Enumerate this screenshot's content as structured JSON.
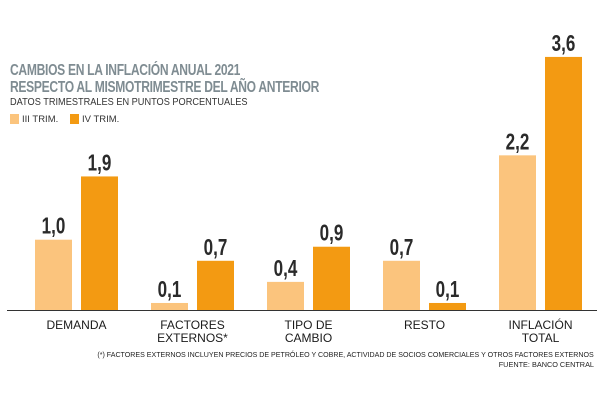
{
  "chart_data": {
    "type": "bar",
    "title": "CAMBIOS EN LA INFLACIÓN ANUAL 2021",
    "subtitle": "RESPECTO AL MISMOTRIMESTRE DEL AÑO ANTERIOR",
    "ylabel": "DATOS TRIMESTRALES EN PUNTOS PORCENTUALES",
    "categories": [
      [
        "DEMANDA"
      ],
      [
        "FACTORES",
        "EXTERNOS*"
      ],
      [
        "TIPO DE",
        "CAMBIO"
      ],
      [
        "RESTO"
      ],
      [
        "INFLACIÓN",
        "TOTAL"
      ]
    ],
    "series": [
      {
        "name": "III TRIM.",
        "color": "#fbc47d",
        "values": [
          1.0,
          0.1,
          0.4,
          0.7,
          2.2
        ],
        "labels": [
          "1,0",
          "0,1",
          "0,4",
          "0,7",
          "2,2"
        ]
      },
      {
        "name": "IV TRIM.",
        "color": "#f39a12",
        "values": [
          1.9,
          0.7,
          0.9,
          0.1,
          3.6
        ],
        "labels": [
          "1,9",
          "0,7",
          "0,9",
          "0,1",
          "3,6"
        ]
      }
    ],
    "ylim": [
      0,
      3.6
    ],
    "grid": false,
    "legend": "top-left",
    "footnote": "(*) FACTORES EXTERNOS INCLUYEN PRECIOS DE PETRÓLEO Y COBRE, ACTIVIDAD DE SOCIOS COMERCIALES Y OTROS FACTORES EXTERNOS",
    "source": "FUENTE: BANCO CENTRAL"
  }
}
